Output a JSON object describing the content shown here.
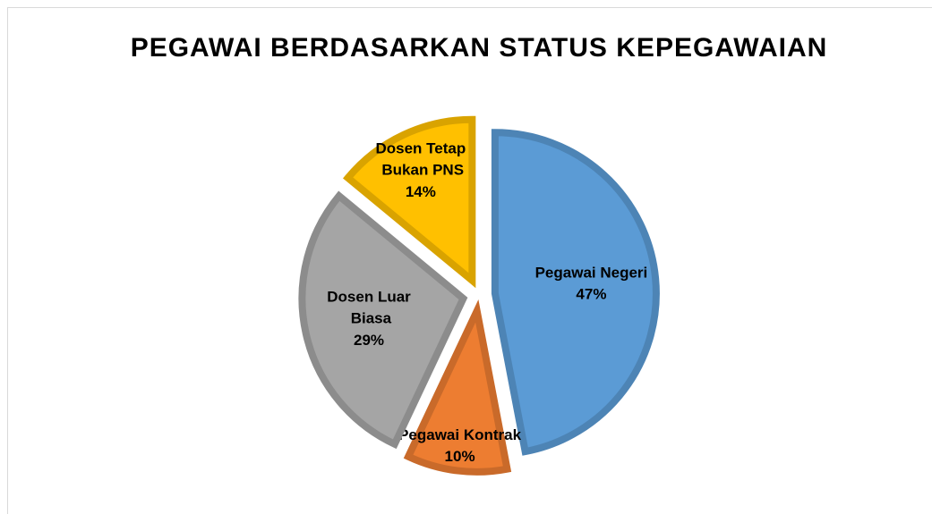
{
  "chart_data": {
    "type": "pie",
    "title": "PEGAWAI BERDASARKAN STATUS KEPEGAWAIAN",
    "categories": [
      "Pegawai Negeri",
      "Pegawai Kontrak",
      "Dosen Luar Biasa",
      "Dosen Tetap Bukan PNS"
    ],
    "values": [
      47,
      10,
      29,
      14
    ],
    "value_labels": [
      "47%",
      "10%",
      "29%",
      "14%"
    ],
    "colors": [
      "#5b9bd5",
      "#ed7d31",
      "#a5a5a5",
      "#ffc000"
    ],
    "exploded": true
  }
}
